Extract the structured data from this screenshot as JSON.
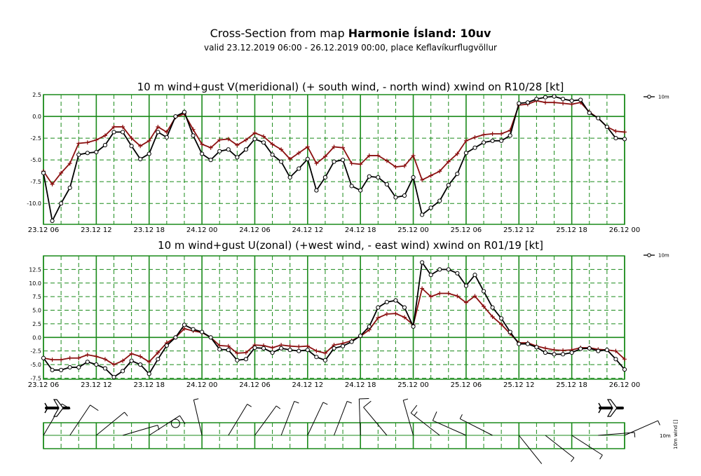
{
  "header": {
    "title_prefix": "Cross-Section from map ",
    "title_bold": "Harmonie Ísland: 10uv",
    "subtitle": "valid 23.12.2019 06:00 - 26.12.2019 00:00, place Keflavíkurflugvöllur"
  },
  "colors": {
    "grid": "#1a8a1a",
    "wind": "#000000",
    "gust": "#8b1010"
  },
  "chart_data": [
    {
      "type": "line",
      "title": "10 m wind+gust V(meridional) (+ south wind, - north wind) xwind on R10/28 [kt]",
      "x_tick_labels": [
        "23.12 06",
        "23.12 12",
        "23.12 18",
        "24.12 00",
        "24.12 06",
        "24.12 12",
        "24.12 18",
        "25.12 00",
        "25.12 06",
        "25.12 12",
        "25.12 18",
        "26.12 00"
      ],
      "y_tick_labels": [
        "2.5",
        "0.0",
        "-2.5",
        "-5.0",
        "-7.5",
        "-10.0"
      ],
      "ylim": [
        -12.4,
        2.5
      ],
      "legend": "10m",
      "series": [
        {
          "name": "wind",
          "values": [
            -6.5,
            -12.0,
            -10.0,
            -8.2,
            -4.4,
            -4.2,
            -4.1,
            -3.3,
            -1.8,
            -1.8,
            -3.4,
            -4.9,
            -4.3,
            -1.8,
            -2.4,
            0.0,
            0.5,
            -2.2,
            -4.3,
            -5.0,
            -4.0,
            -3.8,
            -4.7,
            -3.8,
            -2.6,
            -3.0,
            -4.4,
            -5.2,
            -7.0,
            -6.0,
            -4.9,
            -8.5,
            -7.0,
            -5.2,
            -5.0,
            -8.0,
            -8.5,
            -6.9,
            -7.0,
            -7.8,
            -9.3,
            -9.1,
            -7.0,
            -11.3,
            -10.5,
            -9.7,
            -7.9,
            -6.6,
            -4.2,
            -3.6,
            -3.0,
            -2.8,
            -2.8,
            -2.2,
            1.5,
            1.6,
            2.0,
            2.2,
            2.3,
            2.0,
            1.8,
            1.9,
            0.4,
            -0.2,
            -1.2,
            -2.5,
            -2.6
          ]
        },
        {
          "name": "gust",
          "values": [
            -6.3,
            -7.8,
            -6.5,
            -5.4,
            -3.1,
            -3.0,
            -2.7,
            -2.2,
            -1.2,
            -1.2,
            -2.5,
            -3.4,
            -2.8,
            -1.2,
            -1.8,
            -0.1,
            0.3,
            -1.5,
            -3.2,
            -3.6,
            -2.7,
            -2.6,
            -3.3,
            -2.7,
            -1.9,
            -2.3,
            -3.2,
            -3.8,
            -4.9,
            -4.2,
            -3.5,
            -5.4,
            -4.6,
            -3.5,
            -3.6,
            -5.4,
            -5.5,
            -4.5,
            -4.5,
            -5.1,
            -5.8,
            -5.7,
            -4.5,
            -7.3,
            -6.8,
            -6.3,
            -5.2,
            -4.3,
            -2.8,
            -2.4,
            -2.1,
            -2.0,
            -2.0,
            -1.6,
            1.3,
            1.4,
            1.8,
            1.6,
            1.6,
            1.5,
            1.4,
            1.6,
            0.5,
            -0.2,
            -1.2,
            -1.7,
            -1.8
          ]
        }
      ]
    },
    {
      "type": "line",
      "title": "10 m wind+gust U(zonal) (+west wind, - east wind) xwind on R01/19 [kt]",
      "x_tick_labels": [
        "23.12 06",
        "23.12 12",
        "23.12 18",
        "24.12 00",
        "24.12 06",
        "24.12 12",
        "24.12 18",
        "25.12 00",
        "25.12 06",
        "25.12 12",
        "25.12 18",
        "26.12 00"
      ],
      "y_tick_labels": [
        "12.5",
        "10.0",
        "7.5",
        "5.0",
        "2.5",
        "0.0",
        "-2.5",
        "-5.0",
        "-7.5"
      ],
      "ylim": [
        -7.7,
        15.0
      ],
      "legend": "10m",
      "series": [
        {
          "name": "wind",
          "values": [
            -3.8,
            -6.0,
            -6.0,
            -5.5,
            -5.5,
            -4.5,
            -5.0,
            -5.7,
            -7.3,
            -6.2,
            -4.3,
            -5.0,
            -6.7,
            -4.0,
            -1.5,
            0.0,
            2.3,
            1.5,
            1.0,
            0.0,
            -2.2,
            -2.3,
            -4.2,
            -4.0,
            -1.9,
            -2.0,
            -2.8,
            -2.0,
            -2.3,
            -2.5,
            -2.3,
            -3.6,
            -4.2,
            -2.0,
            -1.6,
            -0.8,
            0.3,
            2.0,
            5.5,
            6.5,
            6.8,
            5.5,
            2.0,
            13.8,
            11.5,
            12.5,
            12.5,
            11.8,
            9.5,
            11.5,
            8.5,
            5.5,
            3.5,
            1.0,
            -1.2,
            -1.2,
            -1.8,
            -2.8,
            -3.1,
            -3.1,
            -2.8,
            -2.1,
            -2.0,
            -2.5,
            -2.3,
            -4.0,
            -5.9
          ]
        },
        {
          "name": "gust",
          "values": [
            -3.8,
            -4.1,
            -4.1,
            -3.8,
            -3.8,
            -3.2,
            -3.5,
            -4.0,
            -5.0,
            -4.3,
            -3.0,
            -3.5,
            -4.5,
            -2.8,
            -1.0,
            0.0,
            1.6,
            1.2,
            0.9,
            0.0,
            -1.5,
            -1.6,
            -2.9,
            -2.8,
            -1.4,
            -1.5,
            -1.9,
            -1.4,
            -1.6,
            -1.7,
            -1.6,
            -2.5,
            -2.9,
            -1.4,
            -1.1,
            -0.6,
            0.2,
            1.4,
            3.6,
            4.3,
            4.4,
            3.7,
            2.3,
            9.0,
            7.5,
            8.1,
            8.1,
            7.6,
            6.4,
            7.6,
            5.7,
            3.8,
            2.4,
            0.7,
            -1.0,
            -1.0,
            -1.6,
            -2.0,
            -2.3,
            -2.4,
            -2.3,
            -1.9,
            -1.9,
            -2.2,
            -2.3,
            -2.5,
            -4.0
          ]
        }
      ]
    },
    {
      "type": "barbs",
      "label": "10m",
      "axis_label": "10m wind []"
    }
  ]
}
